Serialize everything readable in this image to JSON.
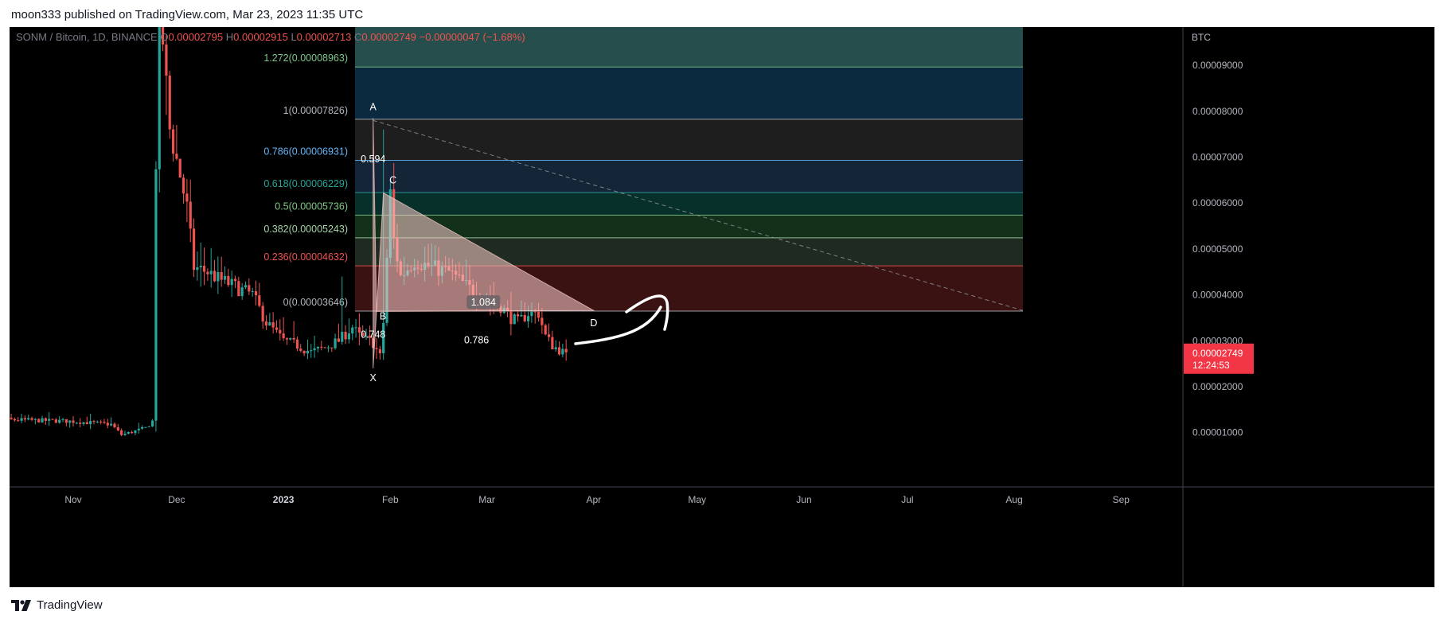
{
  "publish_line": "moon333 published on TradingView.com, Mar 23, 2023 11:35 UTC",
  "brand": "TradingView",
  "brand_icon": "tradingview-logo-icon",
  "chart_data": {
    "type": "candlestick",
    "symbol": "SONM / Bitcoin, 1D, BINANCE",
    "ohlc": {
      "o_label": "O",
      "o": "0.00002795",
      "h_label": "H",
      "h": "0.00002915",
      "l_label": "L",
      "l": "0.00002713",
      "c_label": "C",
      "c": "0.00002749",
      "change": "−0.00000047 (−1.68%)"
    },
    "currency": "BTC",
    "y_ticks": [
      "0.00009000",
      "0.00008000",
      "0.00007000",
      "0.00006000",
      "0.00005000",
      "0.00004000",
      "0.00003000",
      "0.00002000",
      "0.00001000"
    ],
    "y_tick_values": [
      9e-05,
      8e-05,
      7e-05,
      6e-05,
      5e-05,
      4e-05,
      3e-05,
      2e-05,
      1e-05
    ],
    "x_ticks": [
      "Nov",
      "Dec",
      "2023",
      "Feb",
      "Mar",
      "Apr",
      "May",
      "Jun",
      "Jul",
      "Aug",
      "Sep"
    ],
    "x_tick_dates": [
      "2022-11-01",
      "2022-12-01",
      "2023-01-01",
      "2023-02-01",
      "2023-03-01",
      "2023-04-01",
      "2023-05-01",
      "2023-06-01",
      "2023-07-01",
      "2023-08-01",
      "2023-09-01"
    ],
    "last_price": "0.00002749",
    "countdown": "12:24:53",
    "fib_levels": [
      {
        "label": "1.272(0.00008963)",
        "value": 8.963e-05,
        "color": "#7ec98a",
        "fill": "#0c2a3f"
      },
      {
        "label": "1(0.00007826)",
        "value": 7.826e-05,
        "color": "#b2b5be",
        "fill": "#1e1e1e"
      },
      {
        "label": "0.786(0.00006931)",
        "value": 6.931e-05,
        "color": "#64b5f6",
        "fill": "#142538"
      },
      {
        "label": "0.618(0.00006229)",
        "value": 6.229e-05,
        "color": "#26a69a",
        "fill": "#07302b"
      },
      {
        "label": "0.5(0.00005736)",
        "value": 5.736e-05,
        "color": "#81c784",
        "fill": "#13301a"
      },
      {
        "label": "0.382(0.00005243)",
        "value": 5.243e-05,
        "color": "#a5d6a7",
        "fill": "#1f2b20"
      },
      {
        "label": "0.236(0.00004632)",
        "value": 4.632e-05,
        "color": "#ef5350",
        "fill": "#3a1212"
      },
      {
        "label": "0(0.00003646)",
        "value": 3.646e-05,
        "color": "#b2b5be",
        "fill": ""
      }
    ],
    "fib_top_extension_value": 0.0001025,
    "fib_top_extension_fill": "#264e4c",
    "pattern_points": [
      {
        "label": "X",
        "date": "2023-01-27",
        "value": 2.4e-05
      },
      {
        "label": "A",
        "date": "2023-01-27",
        "value": 7.85e-05
      },
      {
        "label": "B",
        "date": "2023-01-28",
        "value": 3.64e-05
      },
      {
        "label": "C",
        "date": "2023-01-30",
        "value": 6.22e-05
      },
      {
        "label": "D",
        "date": "2023-04-01",
        "value": 3.66e-05
      }
    ],
    "pattern_ratios": [
      {
        "label": "0.594",
        "date": "2023-01-27",
        "value": 6.92e-05
      },
      {
        "label": "0.748",
        "date": "2023-01-27",
        "value": 3.1e-05
      },
      {
        "label": "1.084",
        "date": "2023-02-28",
        "value": 3.8e-05
      },
      {
        "label": "0.786",
        "date": "2023-02-26",
        "value": 2.98e-05
      }
    ],
    "colors": {
      "up": "#26a69a",
      "down": "#ef5350",
      "background": "#000000",
      "price_badge": "#f23645",
      "pattern_fill": "#ffd0cc",
      "fib_label_default": "#b2b5be"
    }
  }
}
